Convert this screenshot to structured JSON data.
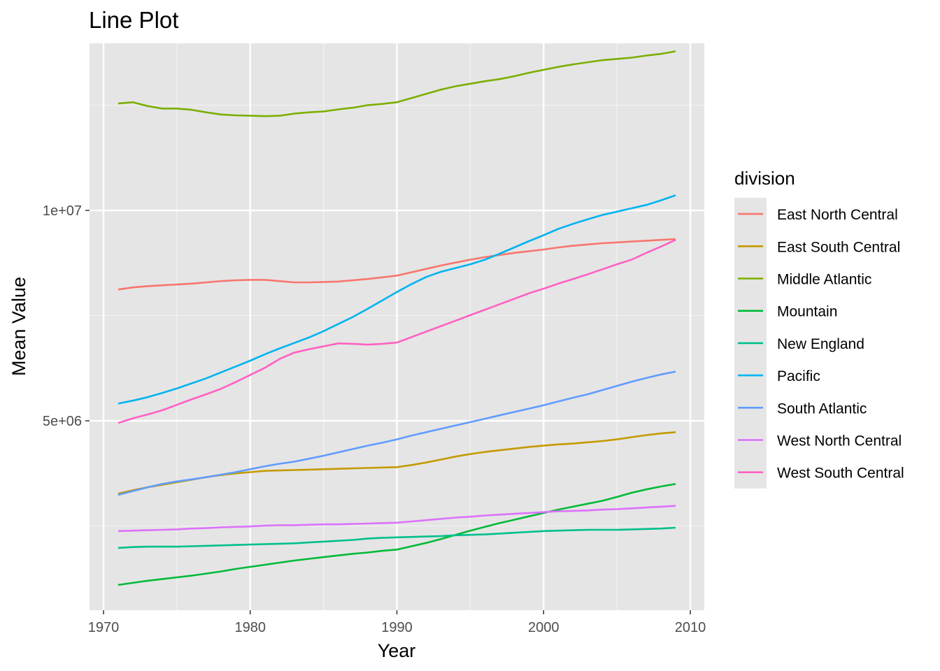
{
  "chart_data": {
    "type": "line",
    "title": "Line Plot",
    "xlabel": "Year",
    "ylabel": "Mean Value",
    "xlim": [
      1970,
      2010
    ],
    "ylim": [
      0,
      14000000
    ],
    "x_ticks": [
      1970,
      1980,
      1990,
      2000,
      2010
    ],
    "x_tick_labels": [
      "1970",
      "1980",
      "1990",
      "2000",
      "2010"
    ],
    "y_ticks": [
      5000000,
      10000000
    ],
    "y_tick_labels": [
      "5e+06",
      "1e+07"
    ],
    "y_minor_ticks": [
      2500000,
      7500000,
      12500000
    ],
    "grid": true,
    "panel_color": "#e5e5e5",
    "legend": {
      "title": "division",
      "position": "right"
    },
    "x": [
      1971,
      1972,
      1973,
      1974,
      1975,
      1976,
      1977,
      1978,
      1979,
      1980,
      1981,
      1982,
      1983,
      1984,
      1985,
      1986,
      1987,
      1988,
      1989,
      1990,
      1991,
      1992,
      1993,
      1994,
      1995,
      1996,
      1997,
      1998,
      1999,
      2000,
      2001,
      2002,
      2003,
      2004,
      2005,
      2006,
      2007,
      2008,
      2009
    ],
    "series": [
      {
        "name": "East North Central",
        "color": "#F8766D",
        "values": [
          8120000,
          8170000,
          8200000,
          8220000,
          8240000,
          8260000,
          8290000,
          8320000,
          8340000,
          8350000,
          8350000,
          8320000,
          8290000,
          8290000,
          8300000,
          8310000,
          8340000,
          8370000,
          8410000,
          8450000,
          8530000,
          8610000,
          8690000,
          8760000,
          8830000,
          8890000,
          8940000,
          8990000,
          9030000,
          9070000,
          9120000,
          9160000,
          9190000,
          9220000,
          9240000,
          9260000,
          9280000,
          9300000,
          9320000
        ]
      },
      {
        "name": "East South Central",
        "color": "#C49A00",
        "values": [
          3270000,
          3350000,
          3420000,
          3480000,
          3540000,
          3600000,
          3660000,
          3710000,
          3750000,
          3780000,
          3810000,
          3820000,
          3830000,
          3840000,
          3850000,
          3860000,
          3870000,
          3880000,
          3890000,
          3900000,
          3950000,
          4010000,
          4080000,
          4150000,
          4210000,
          4260000,
          4300000,
          4340000,
          4380000,
          4410000,
          4440000,
          4460000,
          4490000,
          4520000,
          4560000,
          4610000,
          4660000,
          4700000,
          4730000
        ]
      },
      {
        "name": "Middle Atlantic",
        "color": "#7CAE00",
        "values": [
          12540000,
          12570000,
          12480000,
          12420000,
          12420000,
          12390000,
          12330000,
          12280000,
          12260000,
          12250000,
          12240000,
          12250000,
          12300000,
          12330000,
          12350000,
          12400000,
          12440000,
          12500000,
          12530000,
          12570000,
          12670000,
          12770000,
          12870000,
          12950000,
          13010000,
          13070000,
          13120000,
          13190000,
          13270000,
          13340000,
          13410000,
          13470000,
          13520000,
          13570000,
          13600000,
          13630000,
          13680000,
          13720000,
          13780000
        ]
      },
      {
        "name": "Mountain",
        "color": "#00BA38",
        "values": [
          1100000,
          1150000,
          1200000,
          1240000,
          1280000,
          1320000,
          1370000,
          1420000,
          1480000,
          1530000,
          1580000,
          1630000,
          1680000,
          1720000,
          1760000,
          1800000,
          1840000,
          1870000,
          1910000,
          1940000,
          2020000,
          2100000,
          2190000,
          2290000,
          2390000,
          2480000,
          2570000,
          2650000,
          2730000,
          2810000,
          2890000,
          2960000,
          3030000,
          3100000,
          3190000,
          3290000,
          3370000,
          3440000,
          3500000
        ]
      },
      {
        "name": "New England",
        "color": "#00C08B",
        "values": [
          1980000,
          2000000,
          2010000,
          2010000,
          2010000,
          2020000,
          2030000,
          2040000,
          2050000,
          2060000,
          2070000,
          2080000,
          2090000,
          2110000,
          2130000,
          2150000,
          2170000,
          2200000,
          2220000,
          2230000,
          2240000,
          2250000,
          2260000,
          2280000,
          2290000,
          2300000,
          2320000,
          2340000,
          2360000,
          2380000,
          2390000,
          2400000,
          2410000,
          2410000,
          2410000,
          2420000,
          2430000,
          2440000,
          2460000
        ]
      },
      {
        "name": "Pacific",
        "color": "#00B4F0",
        "values": [
          5410000,
          5480000,
          5560000,
          5660000,
          5770000,
          5890000,
          6010000,
          6150000,
          6290000,
          6430000,
          6580000,
          6720000,
          6850000,
          6980000,
          7130000,
          7300000,
          7470000,
          7660000,
          7860000,
          8060000,
          8250000,
          8420000,
          8540000,
          8630000,
          8720000,
          8830000,
          8970000,
          9120000,
          9270000,
          9410000,
          9560000,
          9680000,
          9790000,
          9890000,
          9970000,
          10050000,
          10130000,
          10240000,
          10360000
        ]
      },
      {
        "name": "South Atlantic",
        "color": "#619CFF",
        "values": [
          3240000,
          3330000,
          3420000,
          3500000,
          3560000,
          3610000,
          3660000,
          3720000,
          3780000,
          3850000,
          3920000,
          3980000,
          4030000,
          4100000,
          4170000,
          4250000,
          4330000,
          4410000,
          4480000,
          4560000,
          4650000,
          4730000,
          4810000,
          4890000,
          4970000,
          5050000,
          5130000,
          5210000,
          5290000,
          5370000,
          5460000,
          5550000,
          5630000,
          5730000,
          5830000,
          5930000,
          6020000,
          6100000,
          6170000
        ]
      },
      {
        "name": "West North Central",
        "color": "#DB72FB",
        "values": [
          2380000,
          2390000,
          2400000,
          2410000,
          2420000,
          2440000,
          2450000,
          2470000,
          2480000,
          2490000,
          2510000,
          2520000,
          2520000,
          2530000,
          2540000,
          2540000,
          2550000,
          2560000,
          2570000,
          2580000,
          2610000,
          2640000,
          2670000,
          2700000,
          2720000,
          2750000,
          2770000,
          2790000,
          2810000,
          2830000,
          2850000,
          2860000,
          2870000,
          2890000,
          2900000,
          2920000,
          2940000,
          2960000,
          2980000
        ]
      },
      {
        "name": "West South Central",
        "color": "#FF61C3",
        "values": [
          4950000,
          5060000,
          5150000,
          5250000,
          5380000,
          5510000,
          5630000,
          5760000,
          5920000,
          6090000,
          6260000,
          6470000,
          6620000,
          6700000,
          6770000,
          6840000,
          6830000,
          6810000,
          6830000,
          6860000,
          6990000,
          7120000,
          7250000,
          7380000,
          7510000,
          7640000,
          7770000,
          7900000,
          8030000,
          8140000,
          8260000,
          8370000,
          8480000,
          8600000,
          8720000,
          8830000,
          8990000,
          9140000,
          9300000
        ]
      }
    ]
  }
}
